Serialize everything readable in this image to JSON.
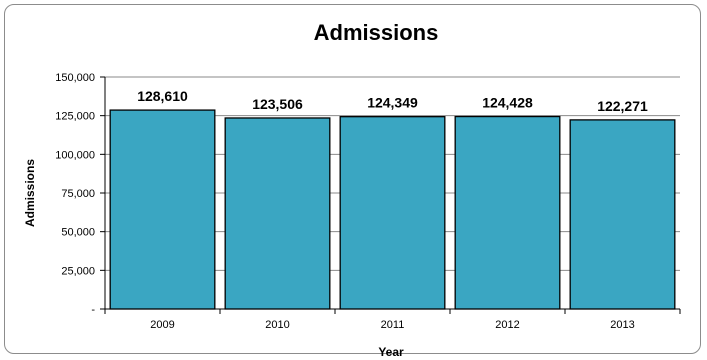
{
  "chart_data": {
    "type": "bar",
    "title": "Admissions",
    "xlabel": "Year",
    "ylabel": "Admissions",
    "categories": [
      "2009",
      "2010",
      "2011",
      "2012",
      "2013"
    ],
    "values": [
      128610,
      123506,
      124349,
      124428,
      122271
    ],
    "data_labels": [
      "128,610",
      "123,506",
      "124,349",
      "124,428",
      "122,271"
    ],
    "ylim": [
      0,
      150000
    ],
    "yticks": [
      0,
      25000,
      50000,
      75000,
      100000,
      125000,
      150000
    ],
    "ytick_labels": [
      "-",
      "25,000",
      "50,000",
      "75,000",
      "100,000",
      "125,000",
      "150,000"
    ],
    "grid": true,
    "legend": "none",
    "bar_color": "#3aa6c2",
    "bar_edge_color": "#000000"
  }
}
